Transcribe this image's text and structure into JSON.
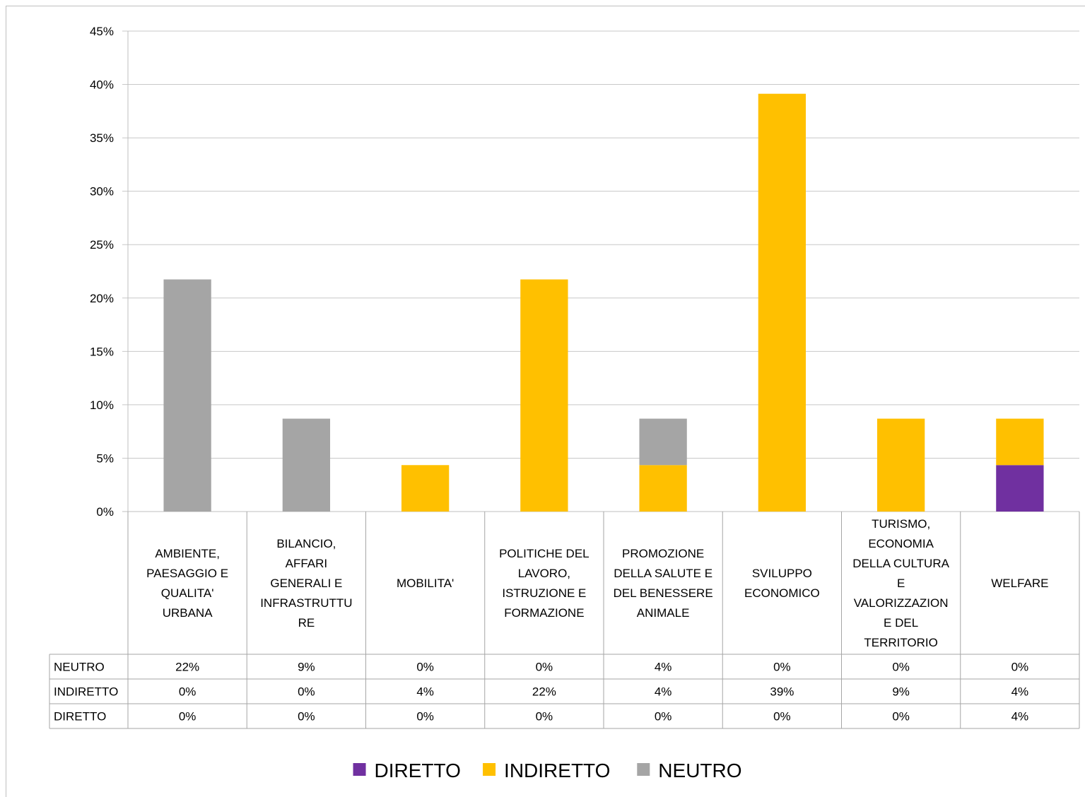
{
  "chart_data": {
    "type": "bar",
    "stacked": true,
    "title": "",
    "xlabel": "",
    "ylabel": "",
    "ylim": [
      0,
      45
    ],
    "yticks": [
      "0%",
      "5%",
      "10%",
      "15%",
      "20%",
      "25%",
      "30%",
      "35%",
      "40%",
      "45%"
    ],
    "grid": true,
    "legend_position": "bottom",
    "categories": [
      [
        "AMBIENTE,",
        "PAESAGGIO E",
        "QUALITA'",
        "URBANA"
      ],
      [
        "BILANCIO,",
        "AFFARI",
        "GENERALI E",
        "INFRASTRUTTU",
        "RE"
      ],
      [
        "MOBILITA'"
      ],
      [
        "POLITICHE DEL",
        "LAVORO,",
        "ISTRUZIONE E",
        "FORMAZIONE"
      ],
      [
        "PROMOZIONE",
        "DELLA SALUTE E",
        "DEL BENESSERE",
        "ANIMALE"
      ],
      [
        "SVILUPPO",
        "ECONOMICO"
      ],
      [
        "TURISMO,",
        "ECONOMIA",
        "DELLA CULTURA",
        "E",
        "VALORIZZAZION",
        "E DEL",
        "TERRITORIO"
      ],
      [
        "WELFARE"
      ]
    ],
    "series": [
      {
        "name": "DIRETTO",
        "color": "#7030A0",
        "values": [
          0,
          0,
          0,
          0,
          0,
          0,
          0,
          4.35
        ],
        "labels": [
          "0%",
          "0%",
          "0%",
          "0%",
          "0%",
          "0%",
          "0%",
          "4%"
        ]
      },
      {
        "name": "INDIRETTO",
        "color": "#FFC000",
        "values": [
          0,
          0,
          4.35,
          21.74,
          4.35,
          39.13,
          8.7,
          4.35
        ],
        "labels": [
          "0%",
          "0%",
          "4%",
          "22%",
          "4%",
          "39%",
          "9%",
          "4%"
        ]
      },
      {
        "name": "NEUTRO",
        "color": "#A5A5A5",
        "values": [
          21.74,
          8.7,
          0,
          0,
          4.35,
          0,
          0,
          0
        ],
        "labels": [
          "22%",
          "9%",
          "0%",
          "0%",
          "4%",
          "0%",
          "0%",
          "0%"
        ]
      }
    ],
    "table_row_order": [
      "NEUTRO",
      "INDIRETTO",
      "DIRETTO"
    ],
    "legend_order": [
      "DIRETTO",
      "INDIRETTO",
      "NEUTRO"
    ]
  }
}
